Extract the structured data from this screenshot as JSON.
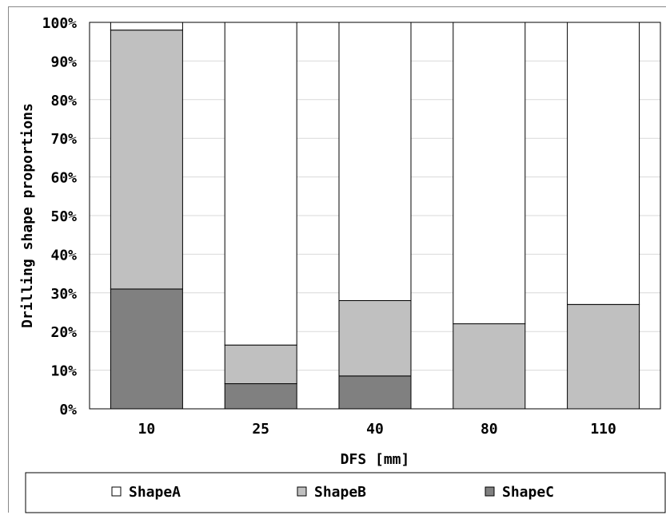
{
  "chart_data": {
    "type": "bar",
    "stacked": true,
    "categories": [
      "10",
      "25",
      "40",
      "80",
      "110"
    ],
    "series": [
      {
        "name": "ShapeC",
        "color": "#808080",
        "values": [
          31,
          6.5,
          8.5,
          0,
          0
        ]
      },
      {
        "name": "ShapeB",
        "color": "#c0c0c0",
        "values": [
          67,
          10,
          19.5,
          22,
          27
        ]
      },
      {
        "name": "ShapeA",
        "color": "#ffffff",
        "values": [
          2,
          83.5,
          72,
          78,
          73
        ]
      }
    ],
    "legend_order": [
      "ShapeA",
      "ShapeB",
      "ShapeC"
    ],
    "xlabel": "DFS [mm]",
    "ylabel": "Drilling shape proportions",
    "ylim": [
      0,
      100
    ],
    "yticks": [
      "0%",
      "10%",
      "20%",
      "30%",
      "40%",
      "50%",
      "60%",
      "70%",
      "80%",
      "90%",
      "100%"
    ],
    "grid": true,
    "legend_position": "bottom"
  }
}
